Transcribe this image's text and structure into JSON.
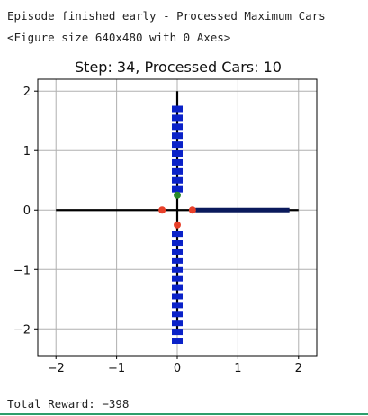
{
  "output": {
    "status_line": "Episode finished early - Processed Maximum Cars",
    "figure_repr": "<Figure size 640x480 with 0 Axes>",
    "reward_line": "Total Reward: −398"
  },
  "colors": {
    "road": "#000000",
    "car_blue": "#0a22c8",
    "car_dark": "#0a1a5c",
    "light_red": "#e8402a",
    "light_green": "#2a8a2a",
    "grid": "#b0b0b0",
    "accent_line": "#2e9e6b"
  },
  "chart_data": {
    "type": "scatter",
    "title": "Step: 34, Processed Cars: 10",
    "xlim": [
      -2.3,
      2.3
    ],
    "ylim": [
      -2.45,
      2.2
    ],
    "xticks": [
      -2,
      -1,
      0,
      1,
      2
    ],
    "yticks": [
      -2,
      -1,
      0,
      1,
      2
    ],
    "xtick_labels": [
      "−2",
      "−1",
      "0",
      "1",
      "2"
    ],
    "ytick_labels": [
      "−2",
      "−1",
      "0",
      "1",
      "2"
    ],
    "grid": true,
    "roads": [
      {
        "x": [
          -2,
          2
        ],
        "y": [
          0,
          0
        ]
      },
      {
        "x": [
          0,
          0
        ],
        "y": [
          -2,
          2
        ]
      }
    ],
    "cars_north": {
      "x": 0,
      "y": [
        1.7,
        1.55,
        1.4,
        1.25,
        1.1,
        0.95,
        0.8,
        0.65,
        0.5,
        0.35
      ]
    },
    "cars_south": {
      "x": 0,
      "y": [
        -0.4,
        -0.55,
        -0.7,
        -0.85,
        -1.0,
        -1.15,
        -1.3,
        -1.45,
        -1.6,
        -1.75,
        -1.9,
        -2.05,
        -2.2
      ]
    },
    "queue_east": {
      "x": [
        0.3,
        1.85
      ],
      "y": 0
    },
    "traffic_lights": [
      {
        "x": -0.25,
        "y": 0,
        "state": "red"
      },
      {
        "x": 0.25,
        "y": 0,
        "state": "red"
      },
      {
        "x": 0,
        "y": -0.25,
        "state": "red"
      },
      {
        "x": 0,
        "y": 0.25,
        "state": "green"
      }
    ]
  }
}
